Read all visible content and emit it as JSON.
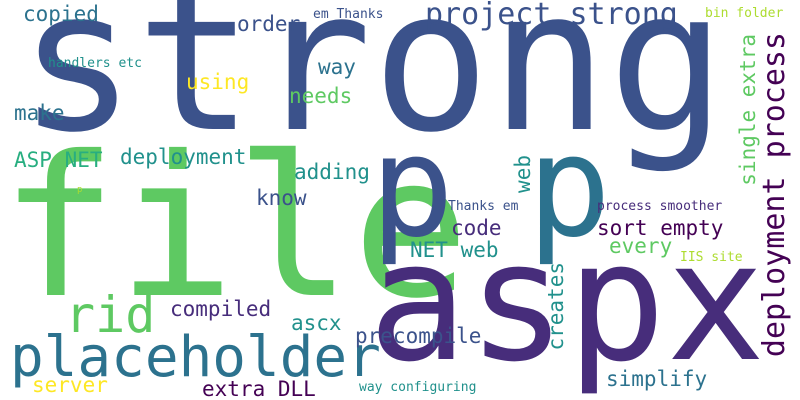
{
  "cloud": {
    "background": "#ffffff",
    "words": [
      {
        "text": "strong",
        "color": "#3b528b"
      },
      {
        "text": "file",
        "color": "#5ec962"
      },
      {
        "text": "aspx",
        "color": "#472d7b"
      },
      {
        "text": "p",
        "color": "#3b528b"
      },
      {
        "text": "p",
        "color": "#2c728e"
      },
      {
        "text": "placeholder",
        "color": "#2c728e"
      },
      {
        "text": "rid",
        "color": "#5ec962"
      },
      {
        "text": "project strong",
        "color": "#3b528b"
      },
      {
        "text": "deployment process",
        "color": "#440154"
      },
      {
        "text": "single extra",
        "color": "#5ec962"
      },
      {
        "text": "copied",
        "color": "#2c728e"
      },
      {
        "text": "order",
        "color": "#3b528b"
      },
      {
        "text": "em Thanks",
        "color": "#3b528b"
      },
      {
        "text": "bin folder",
        "color": "#addc30"
      },
      {
        "text": "handlers etc",
        "color": "#21918c"
      },
      {
        "text": "way",
        "color": "#2c728e"
      },
      {
        "text": "using",
        "color": "#fde725"
      },
      {
        "text": "needs",
        "color": "#5ec962"
      },
      {
        "text": "make",
        "color": "#2c728e"
      },
      {
        "text": "ASP NET",
        "color": "#28ae80"
      },
      {
        "text": "deployment",
        "color": "#21918c"
      },
      {
        "text": "adding",
        "color": "#21918c"
      },
      {
        "text": "know",
        "color": "#3b528b"
      },
      {
        "text": "web",
        "color": "#21918c"
      },
      {
        "text": "p",
        "color": "#addc30"
      },
      {
        "text": "Thanks em",
        "color": "#3b528b"
      },
      {
        "text": "process smoother",
        "color": "#472d7b"
      },
      {
        "text": "code",
        "color": "#472d7b"
      },
      {
        "text": "sort empty",
        "color": "#440154"
      },
      {
        "text": "NET web",
        "color": "#21918c"
      },
      {
        "text": "every",
        "color": "#5ec962"
      },
      {
        "text": "IIS site",
        "color": "#addc30"
      },
      {
        "text": "creates",
        "color": "#21918c"
      },
      {
        "text": "compiled",
        "color": "#472d7b"
      },
      {
        "text": "ascx",
        "color": "#21918c"
      },
      {
        "text": "precompile",
        "color": "#3b528b"
      },
      {
        "text": "server",
        "color": "#fde725"
      },
      {
        "text": "extra DLL",
        "color": "#440154"
      },
      {
        "text": "way configuring",
        "color": "#21918c"
      },
      {
        "text": "simplify",
        "color": "#2c728e"
      }
    ]
  }
}
